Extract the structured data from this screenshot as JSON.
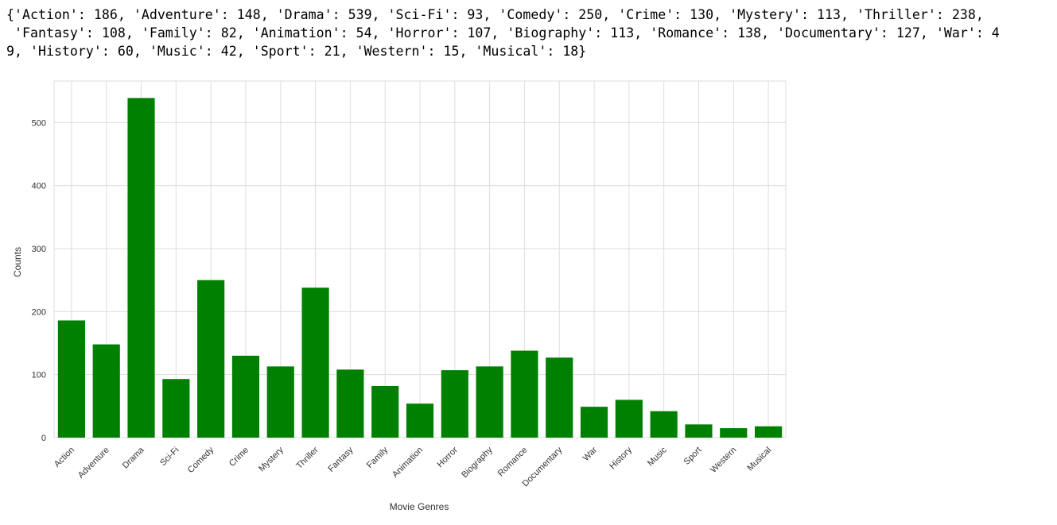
{
  "output": {
    "lines": [
      "{'Action': 186, 'Adventure': 148, 'Drama': 539, 'Sci-Fi': 93, 'Comedy': 250, 'Crime': 130, 'Mystery': 113, 'Thriller': 238,",
      " 'Fantasy': 108, 'Family': 82, 'Animation': 54, 'Horror': 107, 'Biography': 113, 'Romance': 138, 'Documentary': 127, 'War': 4",
      "9, 'History': 60, 'Music': 42, 'Sport': 21, 'Western': 15, 'Musical': 18}"
    ]
  },
  "chart_data": {
    "type": "bar",
    "categories": [
      "Action",
      "Adventure",
      "Drama",
      "Sci-Fi",
      "Comedy",
      "Crime",
      "Mystery",
      "Thriller",
      "Fantasy",
      "Family",
      "Animation",
      "Horror",
      "Biography",
      "Romance",
      "Documentary",
      "War",
      "History",
      "Music",
      "Sport",
      "Western",
      "Musical"
    ],
    "values": [
      186,
      148,
      539,
      93,
      250,
      130,
      113,
      238,
      108,
      82,
      54,
      107,
      113,
      138,
      127,
      49,
      60,
      42,
      21,
      15,
      18
    ],
    "xlabel": "Movie Genres",
    "ylabel": "Counts",
    "ylim": [
      0,
      566
    ],
    "yticks": [
      0,
      100,
      200,
      300,
      400,
      500
    ],
    "grid": true,
    "bar_color": "#008000",
    "grid_color": "#dddddd"
  }
}
